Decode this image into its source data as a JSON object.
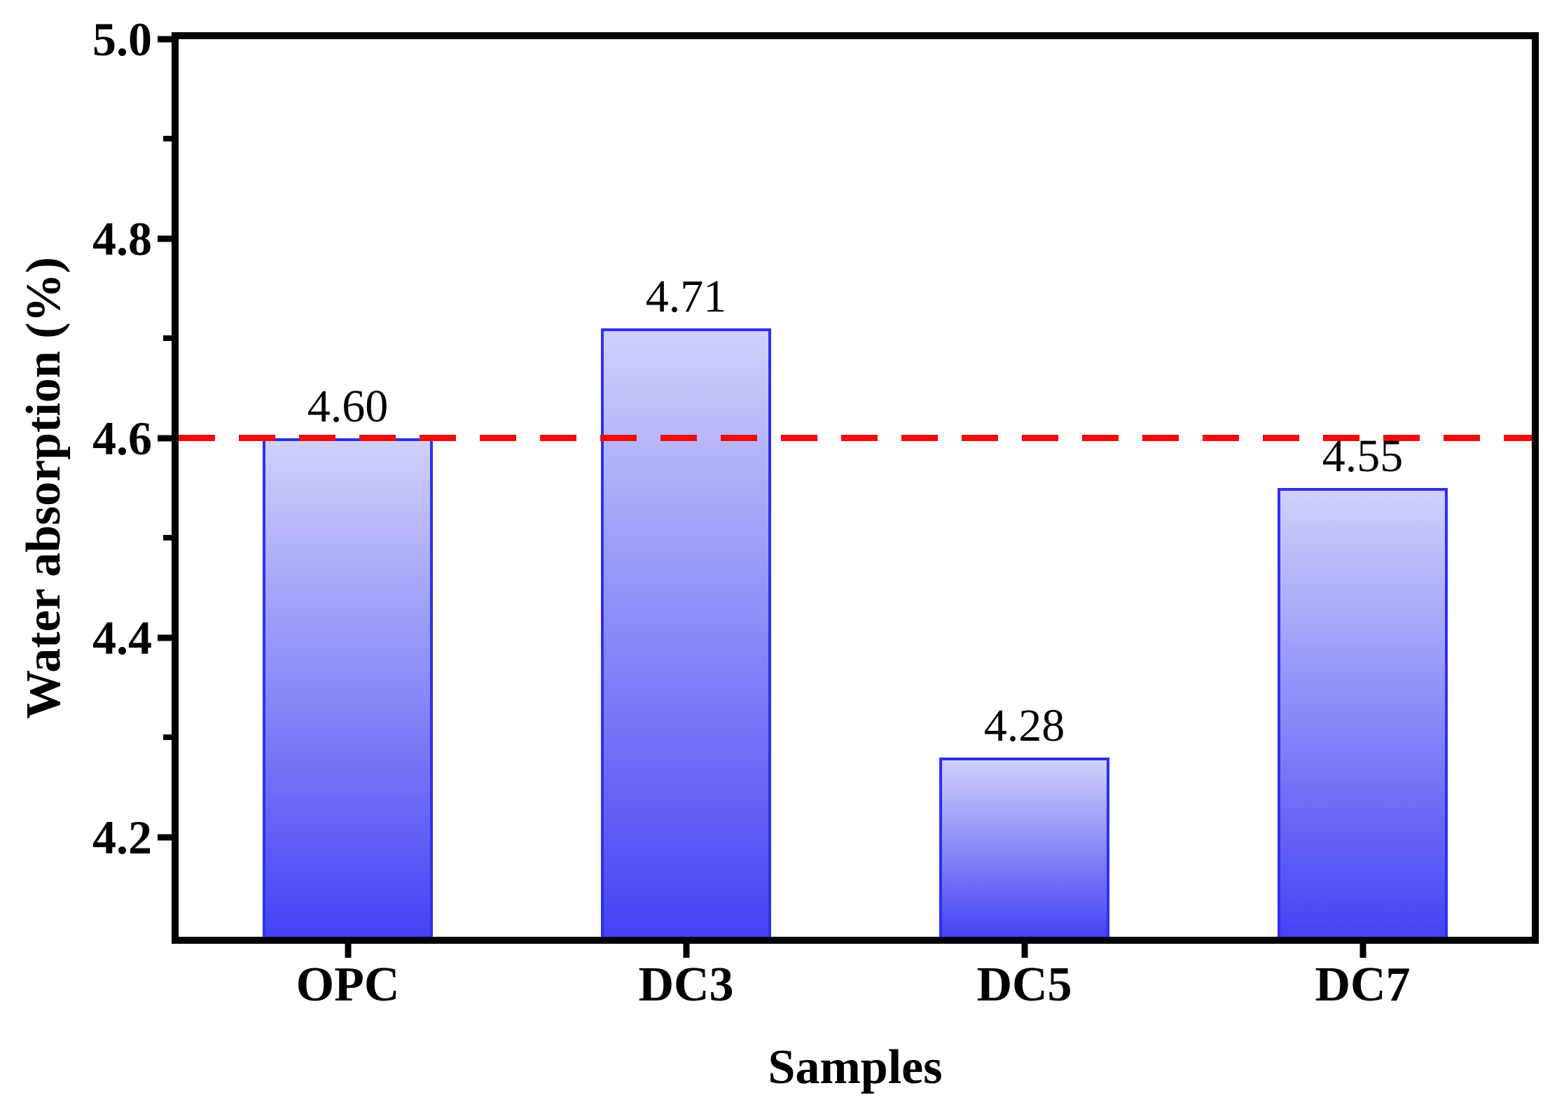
{
  "chart_data": {
    "type": "bar",
    "title": "",
    "xlabel": "Samples",
    "ylabel": "Water absorption (%)",
    "categories": [
      "OPC",
      "DC3",
      "DC5",
      "DC7"
    ],
    "values": [
      4.6,
      4.71,
      4.28,
      4.55
    ],
    "value_labels": [
      "4.60",
      "4.71",
      "4.28",
      "4.55"
    ],
    "ylim": [
      4.1,
      5.0
    ],
    "y_major_ticks": [
      5.0,
      4.8,
      4.6,
      4.4,
      4.2
    ],
    "y_major_tick_labels": [
      "5.0",
      "4.8",
      "4.6",
      "4.4",
      "4.2"
    ],
    "y_minor_ticks": [
      4.9,
      4.7,
      4.5,
      4.3
    ],
    "grid": false,
    "legend": "none",
    "reference_line": {
      "value": 4.6,
      "style": "dashed",
      "color": "#ee0d0d"
    },
    "colors": {
      "bar_gradient_top": "#d0d0fa",
      "bar_gradient_bottom": "#4343f4",
      "bar_border": "#2f2ff0",
      "axis": "#000000",
      "text": "#000000",
      "background": "#ffffff"
    }
  }
}
